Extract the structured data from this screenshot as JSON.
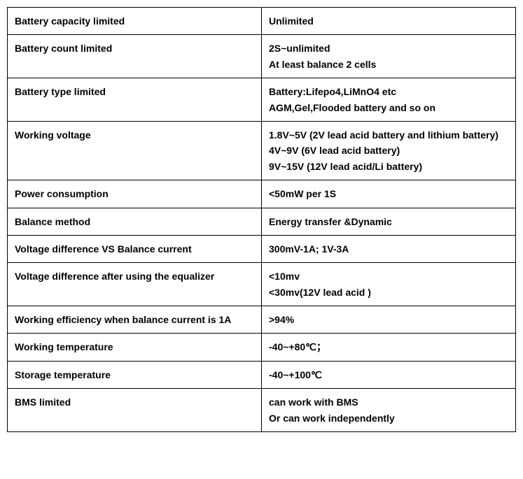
{
  "table": {
    "rows": [
      {
        "label": "Battery capacity limited",
        "value": "Unlimited"
      },
      {
        "label": "Battery count limited",
        "value": "2S~unlimited\nAt least balance 2 cells"
      },
      {
        "label": "Battery type limited",
        "value": "Battery:Lifepo4,LiMnO4 etc\nAGM,Gel,Flooded battery and so on"
      },
      {
        "label": "Working voltage",
        "value": "1.8V~5V     (2V lead acid battery and lithium battery)\n4V~9V      (6V lead acid battery)\n9V~15V   (12V lead acid/Li battery)"
      },
      {
        "label": "Power consumption",
        "value": "<50mW per 1S"
      },
      {
        "label": "Balance method",
        "value": "Energy transfer &Dynamic"
      },
      {
        "label": "Voltage difference VS Balance current",
        "value": "300mV-1A; 1V-3A"
      },
      {
        "label": "Voltage difference after using the equalizer",
        "value": "<10mv\n<30mv(12V lead acid )"
      },
      {
        "label": "Working efficiency when balance current is 1A",
        "value": ">94%"
      },
      {
        "label": "Working temperature",
        "value": "-40~+80℃；"
      },
      {
        "label": "Storage temperature",
        "value": "-40~+100℃"
      },
      {
        "label": "BMS limited",
        "value": "can work with BMS\nOr can work independently"
      }
    ]
  }
}
